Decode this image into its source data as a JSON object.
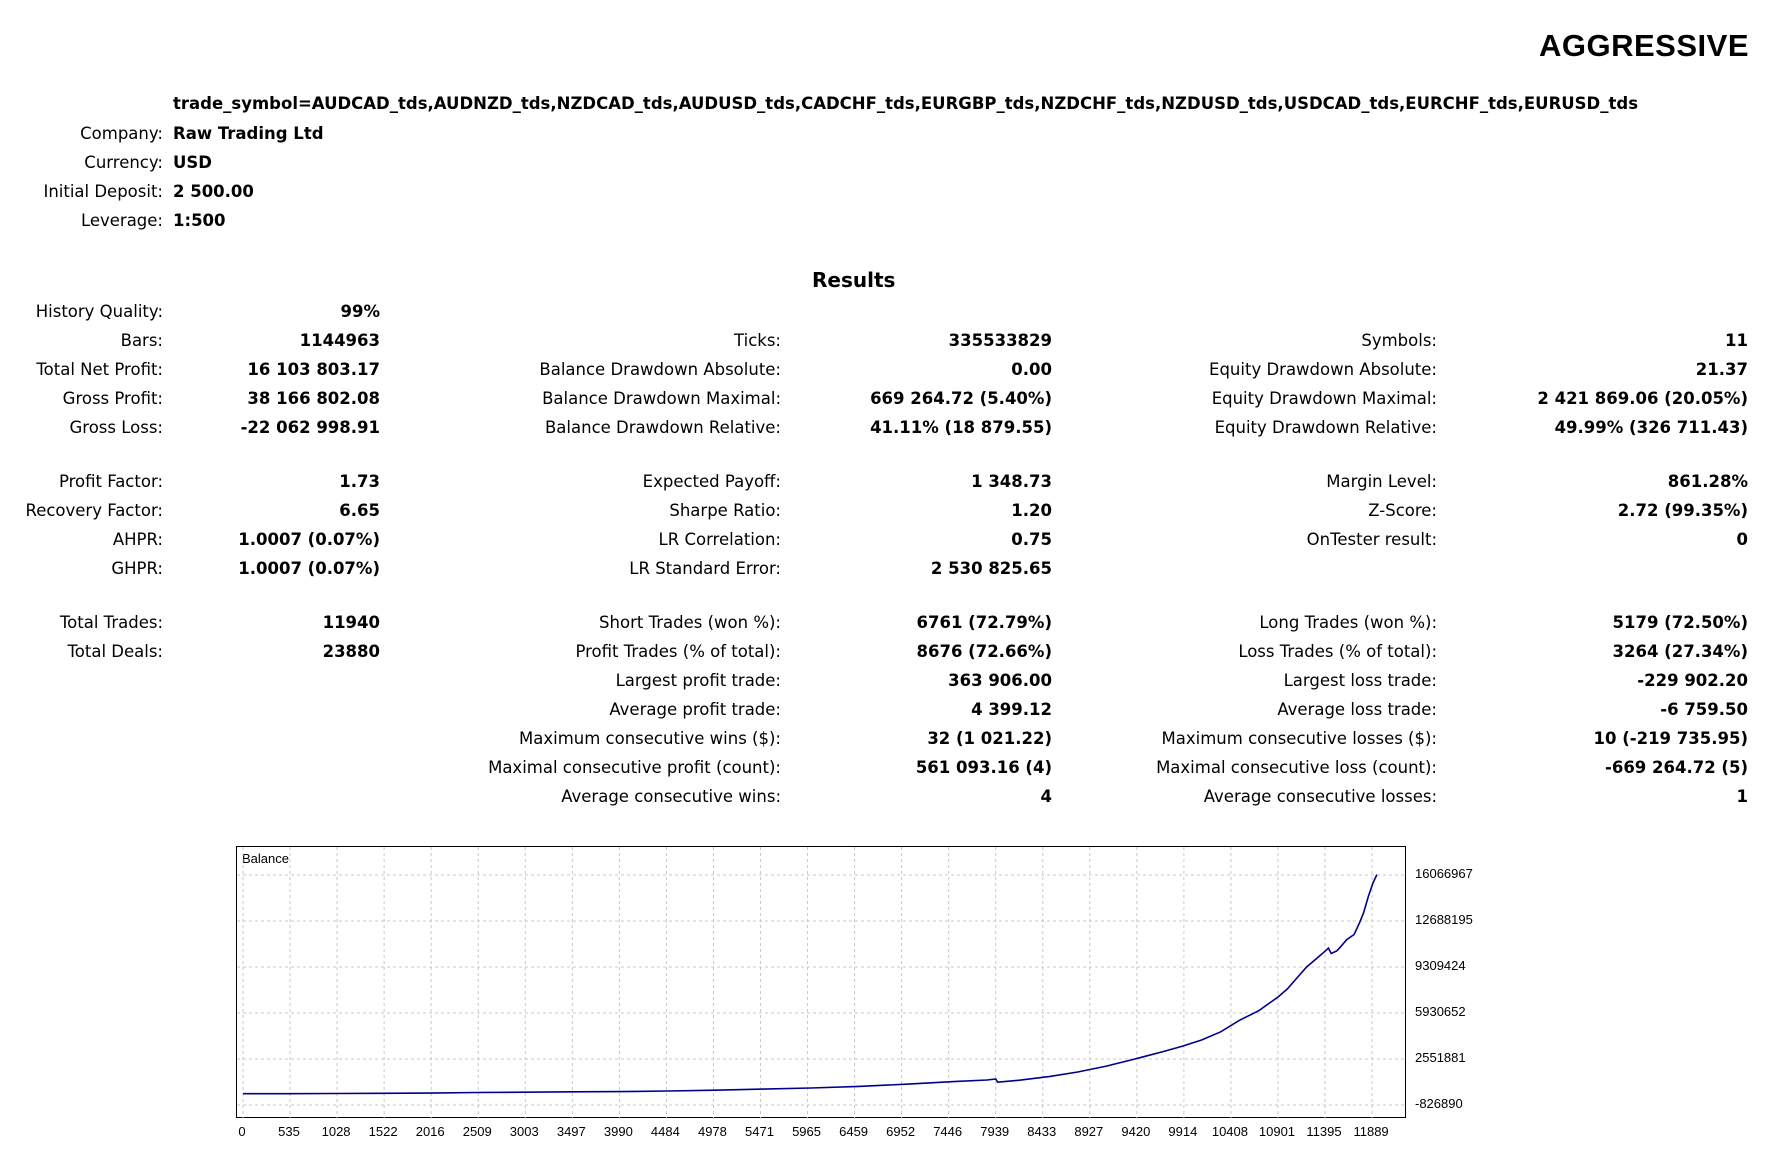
{
  "report": {
    "title": "AGGRESSIVE",
    "params": [
      {
        "label": "",
        "value": "trade_symbol=AUDCAD_tds,AUDNZD_tds,NZDCAD_tds,AUDUSD_tds,CADCHF_tds,EURGBP_tds,NZDCHF_tds,NZDUSD_tds,USDCAD_tds,EURCHF_tds,EURUSD_tds"
      },
      {
        "label": "Company:",
        "value": "Raw Trading Ltd"
      },
      {
        "label": "Currency:",
        "value": "USD"
      },
      {
        "label": "Initial Deposit:",
        "value": "2 500.00"
      },
      {
        "label": "Leverage:",
        "value": "1:500"
      }
    ]
  },
  "results": {
    "title": "Results",
    "col1": [
      {
        "label": "History Quality:",
        "value": "99%"
      },
      {
        "label": "Bars:",
        "value": "1144963"
      },
      {
        "label": "Total Net Profit:",
        "value": "16 103 803.17"
      },
      {
        "label": "Gross Profit:",
        "value": "38 166 802.08"
      },
      {
        "label": "Gross Loss:",
        "value": "-22 062 998.91"
      },
      {
        "label": "Profit Factor:",
        "value": "1.73"
      },
      {
        "label": "Recovery Factor:",
        "value": "6.65"
      },
      {
        "label": "AHPR:",
        "value": "1.0007 (0.07%)"
      },
      {
        "label": "GHPR:",
        "value": "1.0007 (0.07%)"
      },
      {
        "label": "Total Trades:",
        "value": "11940"
      },
      {
        "label": "Total Deals:",
        "value": "23880"
      }
    ],
    "col2": [
      {
        "label": "Ticks:",
        "value": "335533829"
      },
      {
        "label": "Balance Drawdown Absolute:",
        "value": "0.00"
      },
      {
        "label": "Balance Drawdown Maximal:",
        "value": "669 264.72 (5.40%)"
      },
      {
        "label": "Balance Drawdown Relative:",
        "value": "41.11% (18 879.55)"
      },
      {
        "label": "Expected Payoff:",
        "value": "1 348.73"
      },
      {
        "label": "Sharpe Ratio:",
        "value": "1.20"
      },
      {
        "label": "LR Correlation:",
        "value": "0.75"
      },
      {
        "label": "LR Standard Error:",
        "value": "2 530 825.65"
      },
      {
        "label": "Short Trades (won %):",
        "value": "6761 (72.79%)"
      },
      {
        "label": "Profit Trades (% of total):",
        "value": "8676 (72.66%)"
      },
      {
        "label": "Largest profit trade:",
        "value": "363 906.00"
      },
      {
        "label": "Average profit trade:",
        "value": "4 399.12"
      },
      {
        "label": "Maximum consecutive wins ($):",
        "value": "32 (1 021.22)"
      },
      {
        "label": "Maximal consecutive profit (count):",
        "value": "561 093.16 (4)"
      },
      {
        "label": "Average consecutive wins:",
        "value": "4"
      }
    ],
    "col3": [
      {
        "label": "Symbols:",
        "value": "11"
      },
      {
        "label": "Equity Drawdown Absolute:",
        "value": "21.37"
      },
      {
        "label": "Equity Drawdown Maximal:",
        "value": "2 421 869.06 (20.05%)"
      },
      {
        "label": "Equity Drawdown Relative:",
        "value": "49.99% (326 711.43)"
      },
      {
        "label": "Margin Level:",
        "value": "861.28%"
      },
      {
        "label": "Z-Score:",
        "value": "2.72 (99.35%)"
      },
      {
        "label": "OnTester result:",
        "value": "0"
      },
      {
        "label": "Long Trades (won %):",
        "value": "5179 (72.50%)"
      },
      {
        "label": "Loss Trades (% of total):",
        "value": "3264 (27.34%)"
      },
      {
        "label": "Largest loss trade:",
        "value": "-229 902.20"
      },
      {
        "label": "Average loss trade:",
        "value": "-6 759.50"
      },
      {
        "label": "Maximum consecutive losses ($):",
        "value": "10 (-219 735.95)"
      },
      {
        "label": "Maximal consecutive loss (count):",
        "value": "-669 264.72 (5)"
      },
      {
        "label": "Average consecutive losses:",
        "value": "1"
      }
    ]
  },
  "chart": {
    "title": "Balance",
    "y_ticks": [
      "16066967",
      "12688195",
      "9309424",
      "5930652",
      "2551881",
      "-826890"
    ],
    "x_ticks": [
      "0",
      "535",
      "1028",
      "1522",
      "2016",
      "2509",
      "3003",
      "3497",
      "3990",
      "4484",
      "4978",
      "5471",
      "5965",
      "6459",
      "6952",
      "7446",
      "7939",
      "8433",
      "8927",
      "9420",
      "9914",
      "10408",
      "10901",
      "11395",
      "11889"
    ],
    "line_color": "#00008b",
    "grid_color": "#c8c8c8"
  },
  "chart_data": {
    "type": "line",
    "title": "Balance",
    "xlim": [
      0,
      11940
    ],
    "ylim": [
      -826890,
      16600000
    ],
    "series": [
      {
        "x": [
          0,
          500,
          1000,
          1500,
          2000,
          2500,
          3000,
          3500,
          4000,
          4500,
          5000,
          5500,
          6000,
          6500,
          7000,
          7500,
          7850,
          7939,
          7960,
          8200,
          8500,
          8800,
          9100,
          9400,
          9700,
          9900,
          10100,
          10300,
          10500,
          10700,
          10800,
          10900,
          11000,
          11100,
          11200,
          11300,
          11400,
          11430,
          11460,
          11520,
          11560,
          11620,
          11700,
          11760,
          11800,
          11850,
          11900,
          11940
        ],
        "y": [
          2500,
          5000,
          15000,
          30000,
          50000,
          90000,
          110000,
          140000,
          160000,
          200000,
          260000,
          340000,
          420000,
          540000,
          700000,
          890000,
          1010000,
          1080000,
          850000,
          1000000,
          1260000,
          1600000,
          2030000,
          2550000,
          3100000,
          3500000,
          3950000,
          4550000,
          5400000,
          6100000,
          6600000,
          7100000,
          7700000,
          8500000,
          9300000,
          9900000,
          10500000,
          10700000,
          10300000,
          10500000,
          10800000,
          11300000,
          11700000,
          12600000,
          13300000,
          14500000,
          15500000,
          16100000
        ]
      }
    ]
  }
}
